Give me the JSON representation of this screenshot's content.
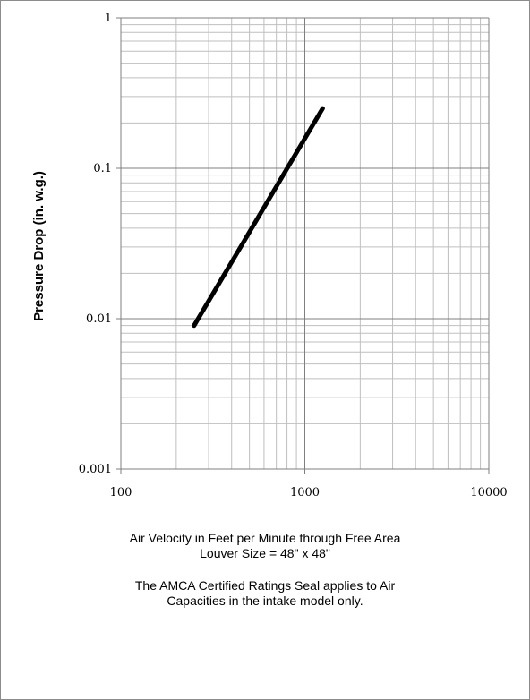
{
  "chart_data": {
    "type": "line",
    "xscale": "log",
    "yscale": "log",
    "xlim": [
      100,
      10000
    ],
    "ylim": [
      0.001,
      1
    ],
    "x_tick_labels": [
      "100",
      "1000",
      "10000"
    ],
    "y_tick_labels": [
      "0.001",
      "0.01",
      "0.1",
      "1"
    ],
    "ylabel": "Pressure Drop (in. w.g.)",
    "grid": true,
    "series": [
      {
        "x": [
          250,
          1250
        ],
        "y": [
          0.009,
          0.25
        ]
      }
    ],
    "colors": {
      "line": "#000000",
      "grid_major": "#7f7f7f",
      "grid_minor": "#bfbfbf"
    }
  },
  "captions": {
    "line1": "Air Velocity in Feet per Minute through Free Area",
    "line2": "Louver Size = 48\" x 48\"",
    "line3": "The AMCA Certified Ratings Seal applies to Air",
    "line4": "Capacities in the intake model only."
  }
}
